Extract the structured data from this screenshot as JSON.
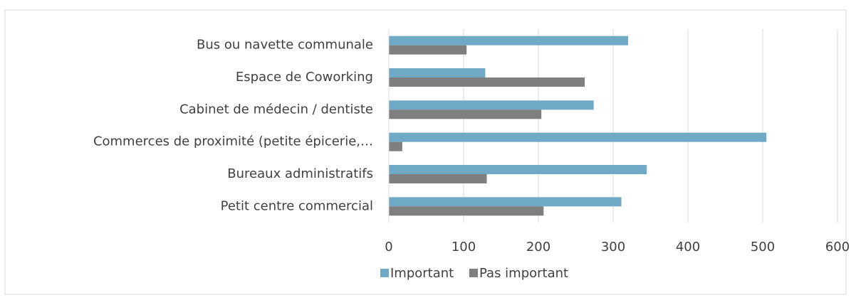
{
  "chart_data": {
    "type": "hbar",
    "categories": [
      "Bus ou navette communale",
      "Espace de Coworking",
      "Cabinet de médecin / dentiste",
      "Commerces de proximité (petite épicerie,…",
      "Bureaux administratifs",
      "Petit centre commercial"
    ],
    "series": [
      {
        "name": "Important",
        "color": "#70a9c6",
        "values": [
          320,
          129,
          274,
          505,
          345,
          311
        ]
      },
      {
        "name": "Pas important",
        "color": "#7f7f7f",
        "values": [
          104,
          262,
          204,
          18,
          131,
          207
        ]
      }
    ],
    "xlim": [
      0,
      600
    ],
    "xticks": [
      0,
      100,
      200,
      300,
      400,
      500,
      600
    ],
    "grid": true,
    "legend": "bottom"
  }
}
